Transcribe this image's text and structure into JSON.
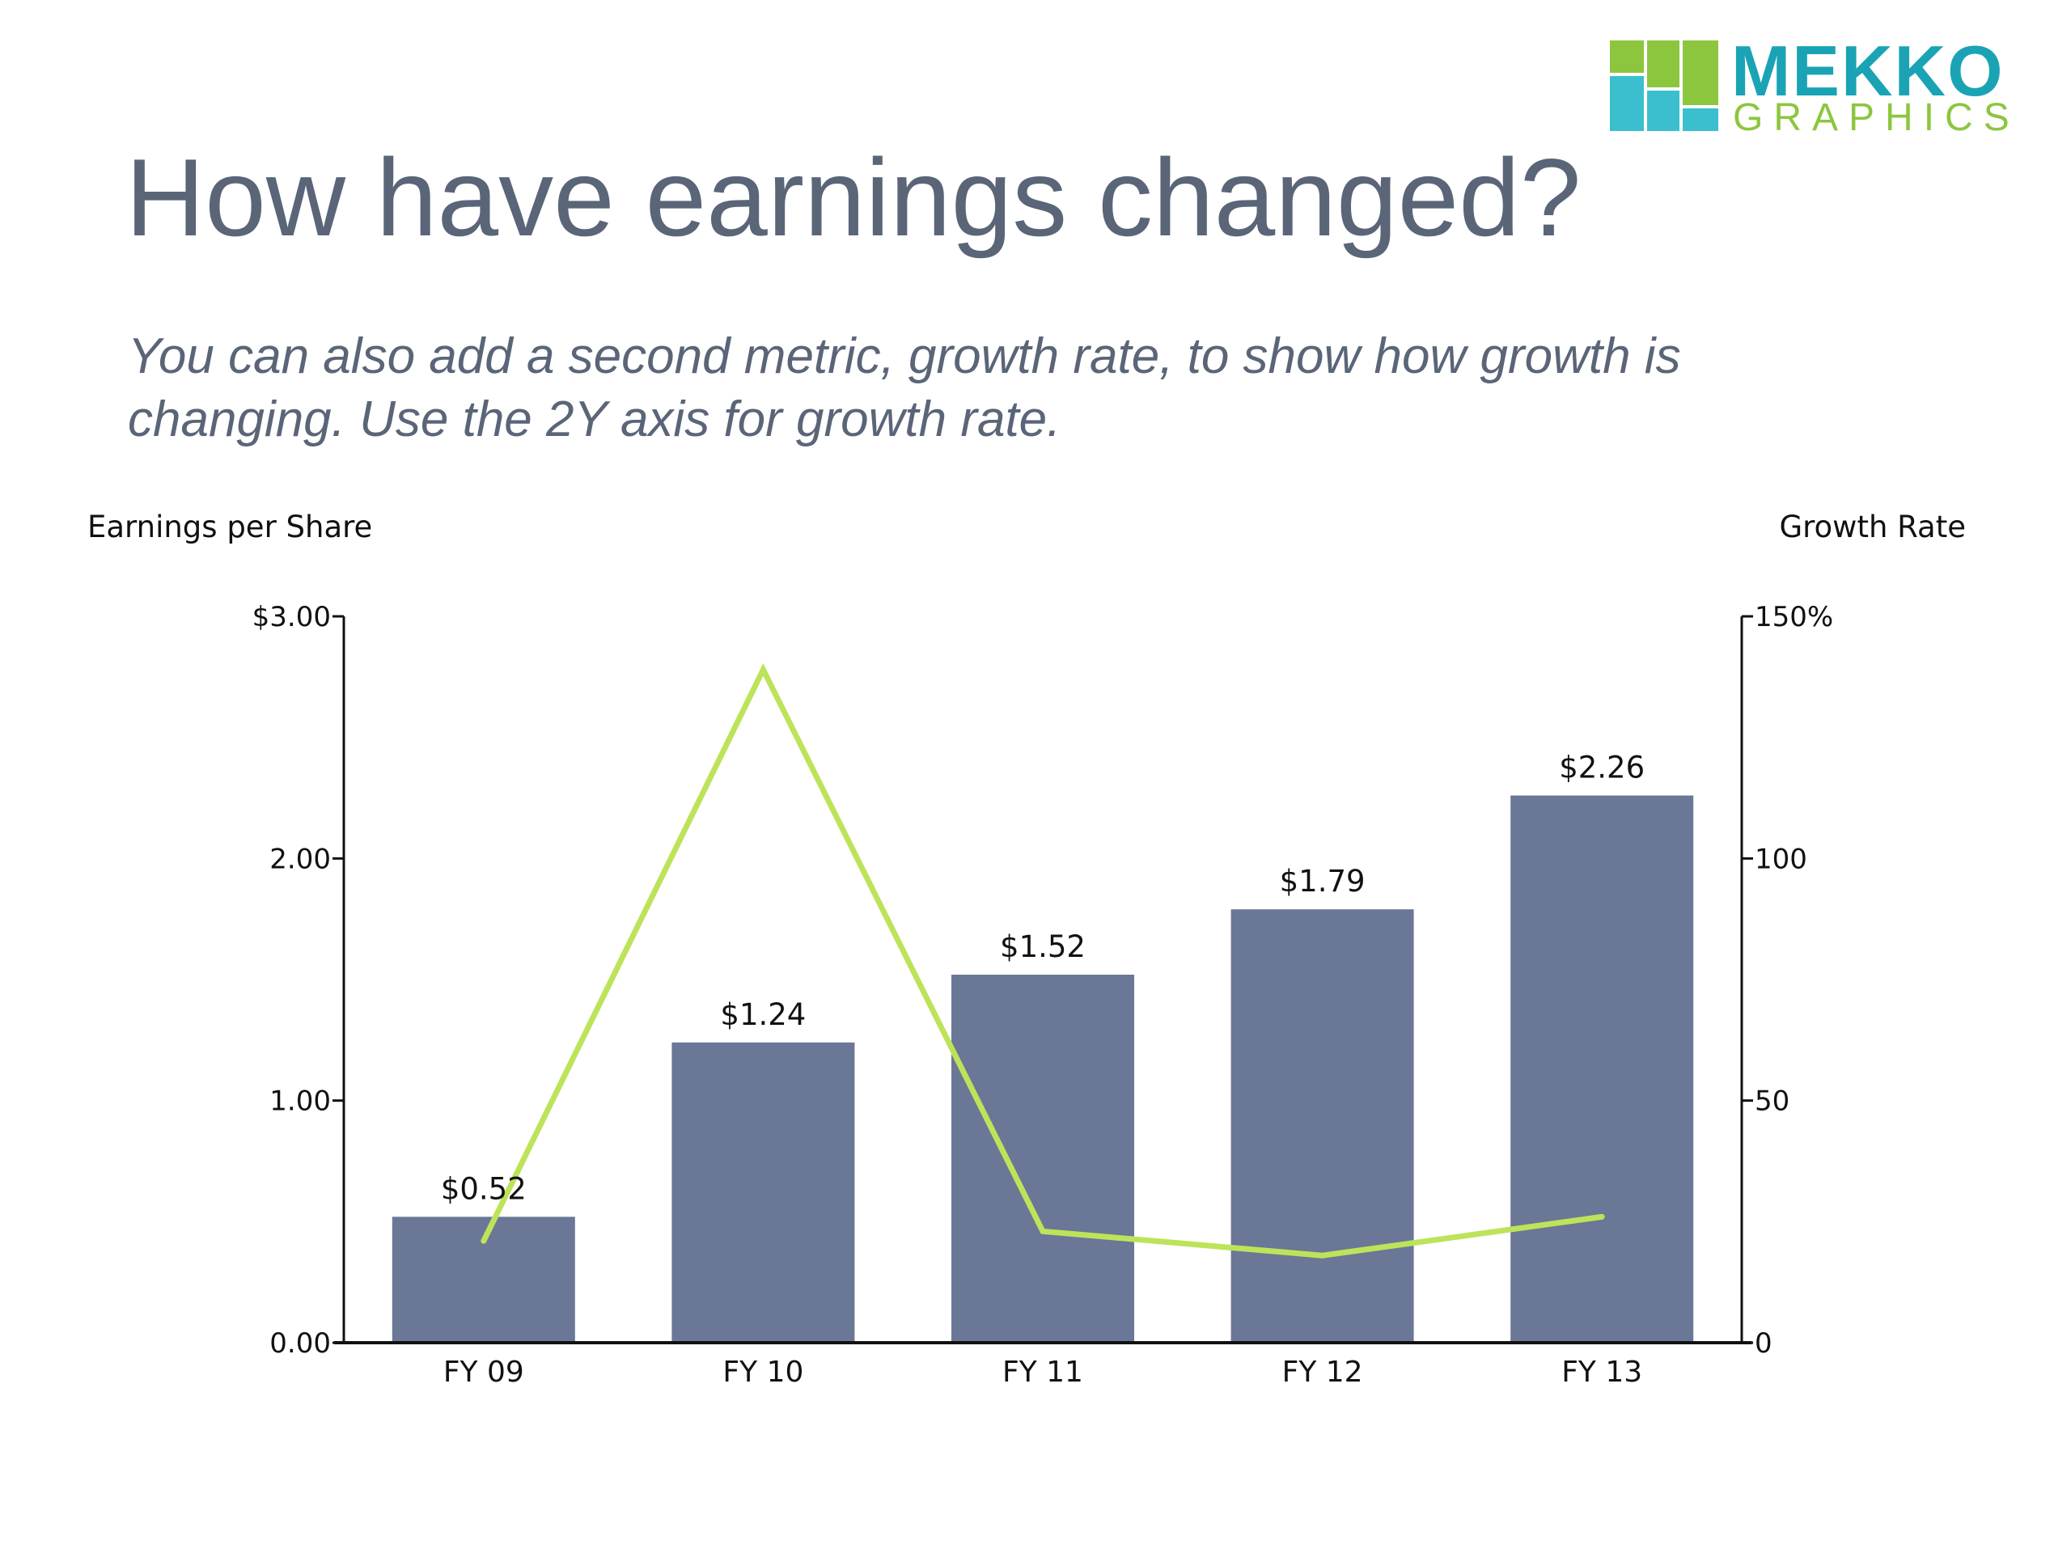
{
  "header": {
    "title": "How have earnings changed?",
    "subtitle": "You can also add a second metric, growth rate, to show how growth is changing. Use the 2Y axis for growth rate."
  },
  "logo": {
    "word1": "MEKKO",
    "word2": "GRAPHICS",
    "colors": {
      "teal": "#1aa3b5",
      "green": "#8cc63f"
    }
  },
  "colors": {
    "bar": "#6a7797",
    "line": "#bde35a",
    "axis": "#111111",
    "title_text": "#5a6578"
  },
  "chart_data": {
    "type": "bar",
    "categories": [
      "FY 09",
      "FY 10",
      "FY 11",
      "FY 12",
      "FY 13"
    ],
    "xlabel": "",
    "ylabel": "Earnings per Share",
    "y2label": "Growth Rate",
    "ylim": [
      0,
      3
    ],
    "y2lim": [
      0,
      150
    ],
    "yticks": [
      "0.00",
      "1.00",
      "2.00",
      "$3.00"
    ],
    "y2ticks": [
      "0",
      "50",
      "100",
      "150%"
    ],
    "grid": false,
    "legend": "none",
    "series": [
      {
        "type": "bar",
        "axis": "y",
        "values": [
          0.52,
          1.24,
          1.52,
          1.79,
          2.26
        ],
        "labels": [
          "$0.52",
          "$1.24",
          "$1.52",
          "$1.79",
          "$2.26"
        ]
      },
      {
        "type": "line",
        "axis": "y2",
        "values": [
          21,
          139,
          23,
          18,
          26
        ]
      }
    ]
  }
}
